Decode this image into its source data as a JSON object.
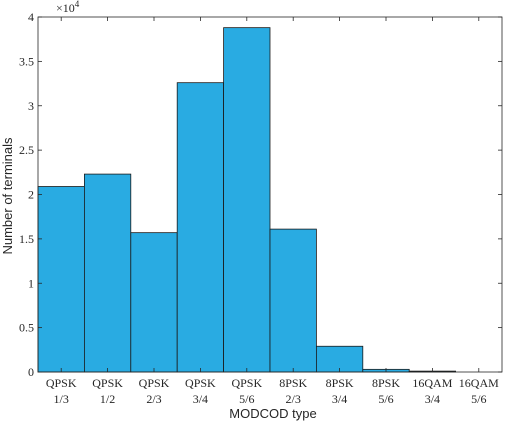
{
  "chart_data": {
    "type": "bar",
    "xlabel": "MODCOD type",
    "ylabel": "Number of terminals",
    "y_exponent_base": "×10",
    "y_exponent_power": "4",
    "ylim": [
      0,
      40000
    ],
    "yticks": [
      0,
      5000,
      10000,
      15000,
      20000,
      25000,
      30000,
      35000,
      40000
    ],
    "ytick_labels": [
      "0",
      "0.5",
      "1",
      "1.5",
      "2",
      "2.5",
      "3",
      "3.5",
      "4"
    ],
    "categories": [
      [
        "QPSK",
        "1/3"
      ],
      [
        "QPSK",
        "1/2"
      ],
      [
        "QPSK",
        "2/3"
      ],
      [
        "QPSK",
        "3/4"
      ],
      [
        "QPSK",
        "5/6"
      ],
      [
        "8PSK",
        "2/3"
      ],
      [
        "8PSK",
        "3/4"
      ],
      [
        "8PSK",
        "5/6"
      ],
      [
        "16QAM",
        "3/4"
      ],
      [
        "16QAM",
        "5/6"
      ]
    ],
    "values": [
      20900,
      22300,
      15700,
      32600,
      38800,
      16100,
      2900,
      300,
      100,
      0
    ],
    "bar_color": "#29abe2",
    "bar_edge_color": "#1a1a1a",
    "grid": false
  }
}
